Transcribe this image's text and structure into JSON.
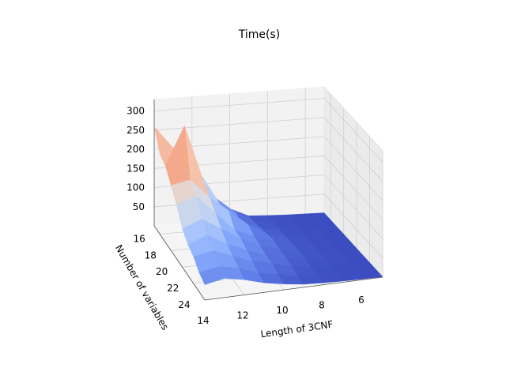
{
  "chart_data": {
    "type": "surface3d",
    "title": "Time(s)",
    "xlabel": "Length of 3CNF",
    "ylabel": "Number of variables",
    "zlabel": "",
    "x": [
      5,
      6,
      7,
      8,
      9,
      10,
      11,
      12,
      13,
      14
    ],
    "y": [
      15,
      16,
      17,
      18,
      19,
      20,
      21,
      22,
      23,
      24
    ],
    "xlim": [
      5,
      14
    ],
    "ylim": [
      15,
      24
    ],
    "zlim": [
      0,
      330
    ],
    "x_ticks": [
      "6",
      "8",
      "10",
      "12",
      "14"
    ],
    "y_ticks": [
      "16",
      "18",
      "20",
      "22",
      "24"
    ],
    "z_ticks": [
      "50",
      "100",
      "150",
      "200",
      "250",
      "300"
    ],
    "colormap": "coolwarm",
    "z": [
      [
        1,
        2,
        3,
        5,
        8,
        30,
        60,
        140,
        200,
        260
      ],
      [
        1,
        2,
        3,
        5,
        10,
        40,
        80,
        160,
        120,
        210
      ],
      [
        1,
        2,
        3,
        6,
        15,
        30,
        70,
        150,
        300,
        200
      ],
      [
        1,
        2,
        4,
        8,
        20,
        50,
        90,
        130,
        180,
        170
      ],
      [
        1,
        2,
        4,
        9,
        25,
        40,
        60,
        110,
        160,
        140
      ],
      [
        1,
        2,
        5,
        10,
        20,
        35,
        60,
        90,
        120,
        100
      ],
      [
        1,
        2,
        5,
        8,
        20,
        30,
        50,
        70,
        100,
        80
      ],
      [
        1,
        2,
        3,
        6,
        15,
        30,
        40,
        60,
        80,
        70
      ],
      [
        1,
        2,
        3,
        5,
        10,
        20,
        30,
        50,
        60,
        50
      ],
      [
        1,
        2,
        3,
        5,
        8,
        15,
        25,
        40,
        50,
        40
      ]
    ]
  }
}
